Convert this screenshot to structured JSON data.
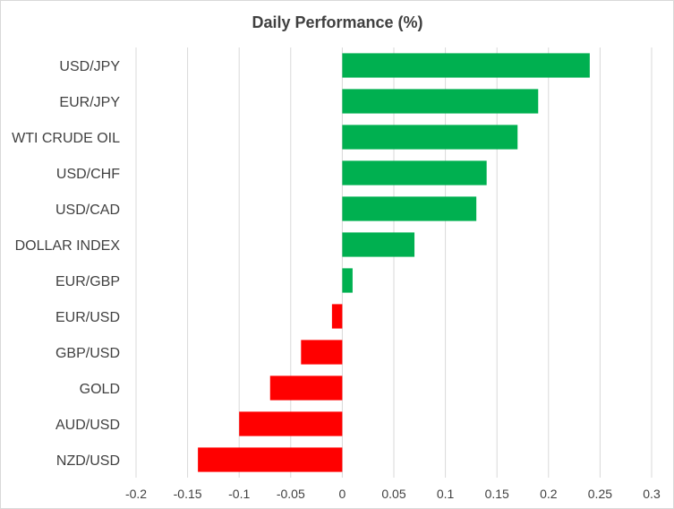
{
  "chart_data": {
    "type": "bar",
    "orientation": "horizontal",
    "title": "Daily Performance  (%)",
    "xlabel": "",
    "ylabel": "",
    "categories": [
      "USD/JPY",
      "EUR/JPY",
      "WTI CRUDE OIL",
      "USD/CHF",
      "USD/CAD",
      "DOLLAR INDEX",
      "EUR/GBP",
      "EUR/USD",
      "GBP/USD",
      "GOLD",
      "AUD/USD",
      "NZD/USD"
    ],
    "values": [
      0.24,
      0.19,
      0.17,
      0.14,
      0.13,
      0.07,
      0.01,
      -0.01,
      -0.04,
      -0.07,
      -0.1,
      -0.14
    ],
    "xlim": [
      -0.2,
      0.3
    ],
    "xticks": [
      -0.2,
      -0.15,
      -0.1,
      -0.05,
      0,
      0.05,
      0.1,
      0.15,
      0.2,
      0.25,
      0.3
    ],
    "xtick_labels": [
      "-0.2",
      "-0.15",
      "-0.1",
      "-0.05",
      "0",
      "0.05",
      "0.1",
      "0.15",
      "0.2",
      "0.25",
      "0.3"
    ],
    "grid": "vertical",
    "legend": "none",
    "colors": {
      "positive": "#00b050",
      "negative": "#ff0000",
      "grid": "#d9d9d9",
      "text": "#404040"
    }
  }
}
